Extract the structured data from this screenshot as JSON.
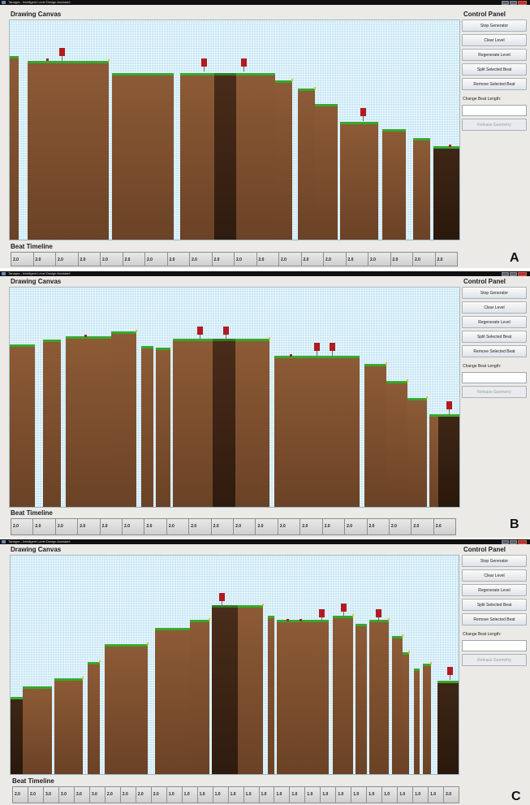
{
  "window": {
    "title": "Tanagra - Intelligent Level Design Assistant"
  },
  "labels": {
    "drawing_canvas": "Drawing Canvas",
    "beat_timeline": "Beat Timeline",
    "control_panel": "Control Panel"
  },
  "control_panel": {
    "buttons": [
      "Stop Generator",
      "Clear Level",
      "Regenerate Level",
      "Split Selected Beat",
      "Remove Selected Beat"
    ],
    "beat_length_label": "Change Beat Length:",
    "beat_length_value": "",
    "release_geometry": "Release Geometry"
  },
  "panels": [
    {
      "letter": "A",
      "timeline": [
        "2.0",
        "2.0",
        "2.0",
        "2.0",
        "2.0",
        "2.0",
        "2.0",
        "2.0",
        "2.0",
        "2.0",
        "2.0",
        "2.0",
        "2.0",
        "2.0",
        "2.0",
        "2.0",
        "2.0",
        "2.0",
        "2.0",
        "2.0"
      ]
    },
    {
      "letter": "B",
      "timeline": [
        "2.0",
        "2.0",
        "2.0",
        "2.0",
        "2.0",
        "2.0",
        "2.0",
        "2.0",
        "2.0",
        "2.0",
        "2.0",
        "2.0",
        "2.0",
        "2.0",
        "2.0",
        "2.0",
        "2.0",
        "2.0",
        "2.0",
        "2.0"
      ]
    },
    {
      "letter": "C",
      "timeline": [
        "2.0",
        "2.0",
        "3.0",
        "3.0",
        "3.0",
        "3.0",
        "2.0",
        "2.0",
        "2.0",
        "2.0",
        "1.0",
        "1.0",
        "1.0",
        "1.0",
        "1.0",
        "1.0",
        "1.0",
        "1.0",
        "1.0",
        "1.0",
        "1.0",
        "1.0",
        "1.0",
        "1.0",
        "1.0",
        "1.0",
        "1.0",
        "1.0",
        "2.0"
      ]
    }
  ],
  "colors": {
    "sky": "#c9e8f6",
    "ground": "#8d5b36",
    "grass": "#37a82b",
    "enemy": "#b11a20"
  }
}
